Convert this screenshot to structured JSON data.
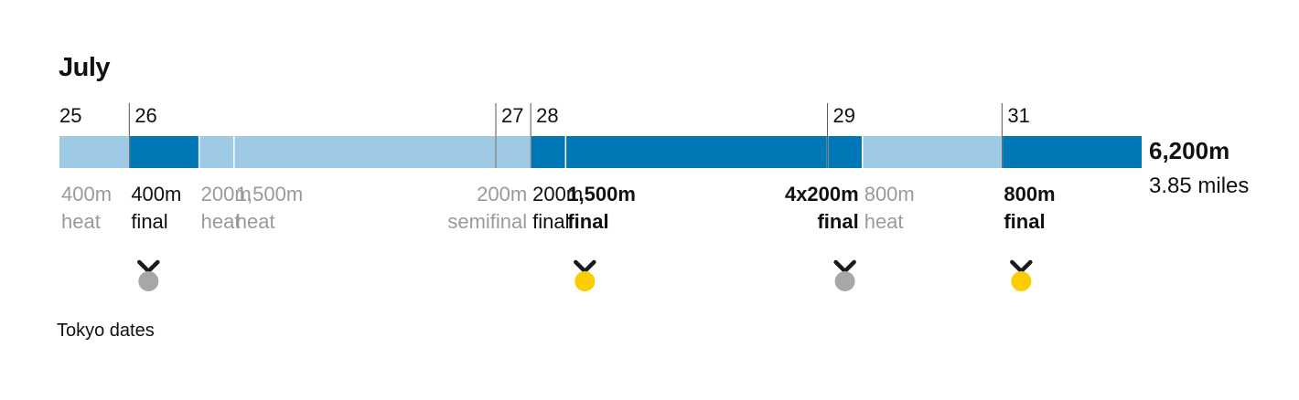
{
  "title": "July",
  "footnote": "Tokyo dates",
  "total": {
    "distance": "6,200m",
    "miles": "3.85 miles"
  },
  "colors": {
    "heat": "#9ecae5",
    "final": "#0077b6",
    "gold": "#fcce00",
    "silver": "#a7a7a7",
    "ribbon": "#1a1a1a"
  },
  "chart_data": {
    "type": "bar",
    "orientation": "horizontal-stacked",
    "unit": "m",
    "days": [
      {
        "label": "25",
        "start_m": 0
      },
      {
        "label": "26",
        "start_m": 400
      },
      {
        "label": "27",
        "start_m": 2500
      },
      {
        "label": "28",
        "start_m": 2700
      },
      {
        "label": "29",
        "start_m": 4400
      },
      {
        "label": "31",
        "start_m": 5400
      }
    ],
    "segments": [
      {
        "distance": 400,
        "line1": "400m",
        "line2": "heat",
        "type": "heat",
        "medal": null,
        "align": "start"
      },
      {
        "distance": 400,
        "line1": "400m",
        "line2": "final",
        "type": "final",
        "medal": "silver",
        "align": "start"
      },
      {
        "distance": 200,
        "line1": "200m",
        "line2": "heat",
        "type": "heat",
        "medal": null,
        "align": "start"
      },
      {
        "distance": 1500,
        "line1": "1,500m",
        "line2": "heat",
        "type": "heat",
        "medal": null,
        "align": "start"
      },
      {
        "distance": 200,
        "line1": "200m",
        "line2": "semifinal",
        "type": "heat",
        "medal": null,
        "align": "end"
      },
      {
        "distance": 200,
        "line1": "200m",
        "line2": "final",
        "type": "final",
        "medal": null,
        "align": "start"
      },
      {
        "distance": 1500,
        "line1": "1,500m",
        "line2": "final",
        "type": "final",
        "medal": "gold",
        "align": "start",
        "bold": true
      },
      {
        "distance": 200,
        "line1": "4x200m",
        "line2": "final",
        "type": "final",
        "medal": "silver",
        "align": "end",
        "bold": true
      },
      {
        "distance": 800,
        "line1": "800m",
        "line2": "heat",
        "type": "heat",
        "medal": null,
        "align": "start"
      },
      {
        "distance": 800,
        "line1": "800m",
        "line2": "final",
        "type": "final",
        "medal": "gold",
        "align": "start",
        "bold": true
      }
    ],
    "total_m": 6200
  }
}
